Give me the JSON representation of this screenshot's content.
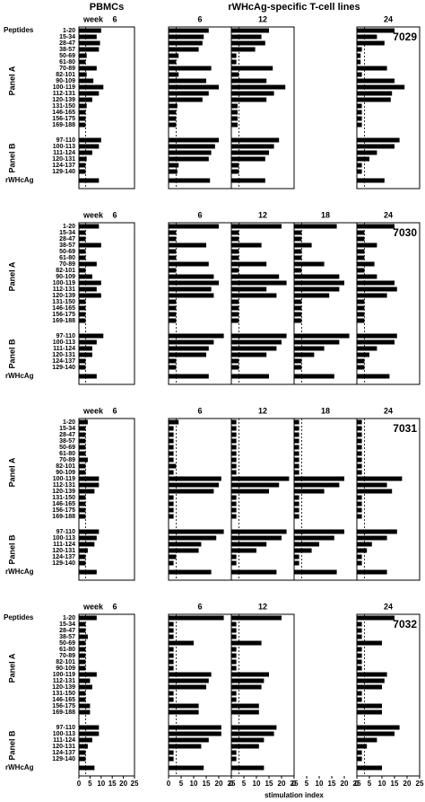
{
  "header": {
    "pbmc_title": "PBMCs",
    "tcell_title": "rWHcAg-specific T-cell lines"
  },
  "week_label": "week",
  "group_labels": {
    "peptides": "Peptides",
    "panel_a": "Panel A",
    "panel_b": "Panel B"
  },
  "panel_a": [
    "1-20",
    "15-34",
    "28-47",
    "38-57",
    "50-69",
    "61-80",
    "70-89",
    "82-101",
    "90-109",
    "100-119",
    "112-131",
    "120-139",
    "131-150",
    "146-165",
    "156-175",
    "169-188"
  ],
  "panel_b": [
    "97-110",
    "100-113",
    "111-124",
    "120-131",
    "124-137",
    "129-140"
  ],
  "antigen": "rWHcAg",
  "xlim": [
    0,
    25
  ],
  "xticks": [
    0,
    5,
    10,
    15,
    20,
    25
  ],
  "x_label": "stimulation index",
  "threshold": 3,
  "bar_color": "#000000",
  "blocks": [
    {
      "animal": "7029",
      "show_peptides": true,
      "pbmc": {
        "week": "6",
        "panel_a": [
          10,
          8,
          9.5,
          9,
          3.5,
          3,
          8,
          3.5,
          6.5,
          11,
          9,
          6,
          3.5,
          3,
          3,
          3
        ],
        "panel_b": [
          10,
          9,
          6,
          3.5,
          3,
          3
        ],
        "antigen": 9
      },
      "tcell": [
        {
          "week": "6",
          "panel_a": [
            16,
            14,
            13.5,
            12,
            4,
            3,
            17,
            4,
            15,
            20,
            16,
            13.5,
            3.5,
            3,
            3,
            3
          ],
          "panel_b": [
            20,
            18.5,
            17,
            16,
            4,
            3.5
          ],
          "antigen": 16.5
        },
        {
          "week": "12",
          "panel_a": [
            15,
            12,
            13.5,
            9.5,
            2,
            2,
            16.5,
            3,
            14,
            21.5,
            17,
            14,
            2.5,
            2.5,
            2.5,
            2.5
          ],
          "panel_b": [
            19,
            17,
            15,
            13.5,
            3,
            3
          ],
          "antigen": 13.5
        },
        null,
        {
          "week": "24",
          "panel_a": [
            15,
            8,
            11,
            2,
            1.5,
            1.5,
            12,
            2,
            15,
            19,
            14,
            13.5,
            2,
            2,
            2,
            2
          ],
          "panel_b": [
            17,
            15,
            8,
            5,
            2,
            2
          ],
          "antigen": 11
        }
      ]
    },
    {
      "animal": "7030",
      "show_peptides": false,
      "pbmc": {
        "week": "6",
        "panel_a": [
          9,
          3,
          3,
          10,
          3,
          3,
          8,
          3,
          6,
          10,
          8,
          10,
          3,
          3,
          3,
          3
        ],
        "panel_b": [
          11,
          8,
          6,
          6,
          3,
          3
        ],
        "antigen": 8
      },
      "tcell": [
        {
          "week": "6",
          "panel_a": [
            20,
            3,
            3,
            15,
            3,
            3,
            16,
            3,
            18,
            20,
            17,
            18,
            3,
            3,
            3,
            3
          ],
          "panel_b": [
            22,
            18,
            16,
            15,
            3,
            3
          ],
          "antigen": 16
        },
        {
          "week": "12",
          "panel_a": [
            20,
            3,
            3,
            12,
            3,
            3,
            14,
            3,
            19,
            22,
            14,
            18,
            3,
            3,
            3,
            3
          ],
          "panel_b": [
            22,
            20,
            18,
            14,
            3,
            3
          ],
          "antigen": 15
        },
        {
          "week": "18",
          "panel_a": [
            17,
            3,
            3,
            7,
            3,
            3,
            12,
            3,
            18,
            20,
            18,
            14,
            3,
            3,
            3,
            3
          ],
          "panel_b": [
            22,
            18,
            12,
            8,
            3,
            3
          ],
          "antigen": 16
        },
        {
          "week": "24",
          "panel_a": [
            15,
            3,
            3,
            8,
            3,
            3,
            7,
            3,
            8,
            15,
            16,
            12,
            3,
            3,
            3,
            3
          ],
          "panel_b": [
            16,
            15,
            8,
            5,
            3,
            3
          ],
          "antigen": 13
        }
      ]
    },
    {
      "animal": "7031",
      "show_peptides": false,
      "pbmc": {
        "week": "6",
        "panel_a": [
          4,
          3,
          3,
          3,
          3,
          3,
          4,
          3,
          3,
          9,
          9,
          7,
          3,
          3,
          3,
          3
        ],
        "panel_b": [
          9,
          8,
          7,
          4,
          3,
          3
        ],
        "antigen": 8
      },
      "tcell": [
        {
          "week": "6",
          "panel_a": [
            4,
            2,
            2,
            2,
            2,
            2,
            2,
            3,
            2,
            21,
            20,
            18,
            2,
            2,
            2,
            2
          ],
          "panel_b": [
            22,
            19,
            13,
            12,
            3,
            2
          ],
          "antigen": 17
        },
        {
          "week": "12",
          "panel_a": [
            2,
            2,
            2,
            2,
            2,
            2,
            2,
            2,
            2,
            23,
            19,
            15,
            2,
            2,
            2,
            2
          ],
          "panel_b": [
            22,
            20,
            14,
            10,
            2,
            2
          ],
          "antigen": 18
        },
        {
          "week": "18",
          "panel_a": [
            2,
            2,
            2,
            2,
            2,
            2,
            2,
            2,
            2,
            20,
            18,
            12,
            2,
            2,
            2,
            2
          ],
          "panel_b": [
            20,
            16,
            10,
            7,
            2,
            2
          ],
          "antigen": 17
        },
        {
          "week": "24",
          "panel_a": [
            2,
            2,
            2,
            2,
            2,
            2,
            2,
            2,
            2,
            18,
            12,
            14,
            2,
            2,
            2,
            2
          ],
          "panel_b": [
            16,
            12,
            6,
            4,
            2,
            2
          ],
          "antigen": 12
        }
      ]
    },
    {
      "animal": "7032",
      "show_peptides": true,
      "pbmc": {
        "week": "6",
        "panel_a": [
          8,
          3,
          3,
          4,
          3,
          3,
          3,
          3,
          3,
          8,
          5,
          6,
          3,
          3,
          5,
          5
        ],
        "panel_b": [
          9,
          9,
          6,
          4,
          3,
          3
        ],
        "antigen": 7
      },
      "tcell": [
        {
          "week": "6",
          "panel_a": [
            22,
            2,
            2,
            2,
            10,
            2,
            2,
            2,
            2,
            17,
            16,
            15,
            2,
            2,
            12,
            12
          ],
          "panel_b": [
            21,
            21,
            16,
            13,
            2,
            2
          ],
          "antigen": 14
        },
        {
          "week": "12",
          "panel_a": [
            20,
            2,
            2,
            2,
            12,
            2,
            2,
            2,
            2,
            15,
            13,
            12,
            2,
            2,
            11,
            11
          ],
          "panel_b": [
            18,
            17,
            13,
            11,
            2,
            2
          ],
          "antigen": 13
        },
        null,
        {
          "week": "24",
          "panel_a": [
            15,
            2,
            2,
            2,
            10,
            2,
            2,
            2,
            2,
            12,
            11,
            10,
            2,
            2,
            10,
            10
          ],
          "panel_b": [
            17,
            15,
            8,
            4,
            2,
            2
          ],
          "antigen": 10
        }
      ]
    }
  ]
}
